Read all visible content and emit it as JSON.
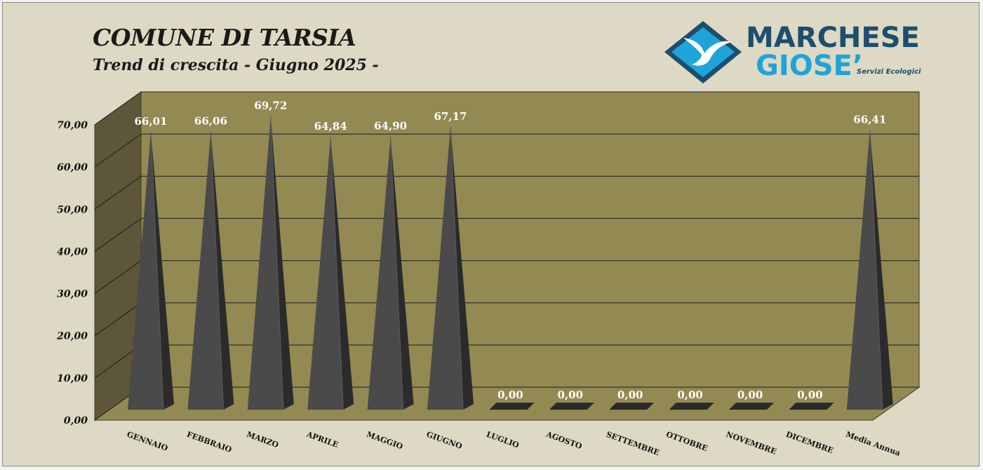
{
  "header": {
    "title": "COMUNE DI TARSIA",
    "subtitle": "Trend di crescita - Giugno 2025 -"
  },
  "logo": {
    "line1": "MARCHESE",
    "line2": "GIOSE’",
    "tagline": "Servizi Ecologici",
    "colors": {
      "dark": "#1d4e6e",
      "light": "#1fa4d9"
    },
    "icon": "seagull-diamond-icon"
  },
  "chart_data": {
    "type": "bar",
    "bar_shape": "3d-pyramid",
    "categories": [
      "GENNAIO",
      "FEBBRAIO",
      "MARZO",
      "APRILE",
      "MAGGIO",
      "GIUGNO",
      "LUGLIO",
      "AGOSTO",
      "SETTEMBRE",
      "OTTOBRE",
      "NOVEMBRE",
      "DICEMBRE",
      "Media Annua"
    ],
    "values": [
      66.01,
      66.06,
      69.72,
      64.84,
      64.9,
      67.17,
      0,
      0,
      0,
      0,
      0,
      0,
      66.41
    ],
    "data_labels": [
      "66,01",
      "66,06",
      "69,72",
      "64,84",
      "64,90",
      "67,17",
      "0,00",
      "0,00",
      "0,00",
      "0,00",
      "0,00",
      "0,00",
      "66,41"
    ],
    "yticks": [
      "0,00",
      "10,00",
      "20,00",
      "30,00",
      "40,00",
      "50,00",
      "60,00",
      "70,00"
    ],
    "ylim": [
      0,
      70
    ],
    "grid": true,
    "colors": {
      "background": "#ddd9c4",
      "back_wall": "#938953",
      "side_wall": "#5e5638",
      "floor": "#938953",
      "bar_light": "#4a4a4a",
      "bar_dark": "#2b2b2b",
      "label": "#ffffff",
      "grid": "#1e1e1e"
    }
  }
}
